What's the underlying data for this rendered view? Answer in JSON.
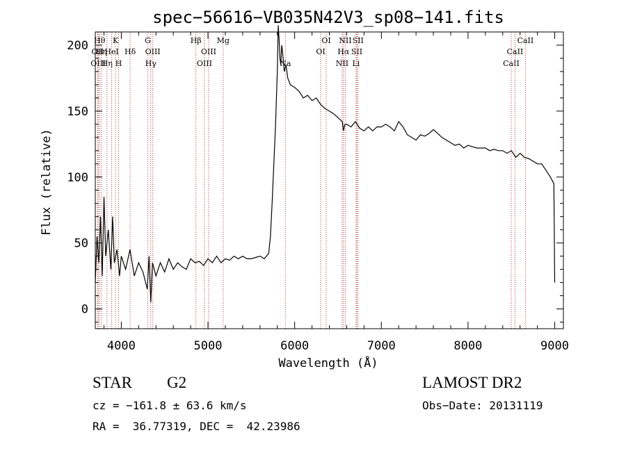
{
  "chart_data": {
    "type": "line",
    "title": "spec−56616−VB035N42V3_sp08−141.fits",
    "xlabel": "Wavelength (Å)",
    "ylabel": "Flux (relative)",
    "xlim": [
      3700,
      9100
    ],
    "ylim": [
      -15,
      210
    ],
    "x_ticks": [
      4000,
      5000,
      6000,
      7000,
      8000,
      9000
    ],
    "y_ticks": [
      0,
      50,
      100,
      150,
      200
    ],
    "grid": false,
    "legend": "none",
    "line_color": "#000000",
    "marker_color": "#b03030",
    "series": [
      {
        "x": [
          3700,
          3720,
          3740,
          3760,
          3780,
          3800,
          3820,
          3850,
          3880,
          3900,
          3920,
          3950,
          3980,
          4000,
          4050,
          4100,
          4150,
          4200,
          4250,
          4300,
          4320,
          4340,
          4360,
          4400,
          4450,
          4500,
          4550,
          4600,
          4650,
          4700,
          4750,
          4800,
          4850,
          4900,
          4950,
          5000,
          5050,
          5100,
          5150,
          5200,
          5250,
          5300,
          5350,
          5400,
          5450,
          5500,
          5550,
          5600,
          5650,
          5700,
          5720,
          5740,
          5760,
          5780,
          5800,
          5810,
          5820,
          5830,
          5840,
          5850,
          5860,
          5880,
          5900,
          5920,
          5950,
          6000,
          6050,
          6100,
          6150,
          6200,
          6250,
          6300,
          6350,
          6400,
          6450,
          6500,
          6550,
          6563,
          6580,
          6600,
          6650,
          6700,
          6750,
          6800,
          6850,
          6900,
          6950,
          7000,
          7050,
          7100,
          7150,
          7200,
          7250,
          7300,
          7350,
          7400,
          7450,
          7500,
          7550,
          7600,
          7650,
          7700,
          7750,
          7800,
          7850,
          7900,
          7950,
          8000,
          8050,
          8100,
          8150,
          8200,
          8250,
          8300,
          8350,
          8400,
          8450,
          8500,
          8550,
          8600,
          8650,
          8700,
          8750,
          8800,
          8850,
          8900,
          8950,
          8990,
          9000
        ],
        "y": [
          20,
          55,
          35,
          70,
          25,
          85,
          40,
          60,
          30,
          70,
          35,
          45,
          25,
          40,
          30,
          45,
          25,
          35,
          28,
          15,
          40,
          5,
          35,
          25,
          35,
          28,
          38,
          30,
          35,
          32,
          30,
          38,
          35,
          36,
          33,
          38,
          35,
          40,
          35,
          38,
          37,
          40,
          38,
          40,
          38,
          38,
          39,
          40,
          38,
          42,
          55,
          80,
          110,
          140,
          180,
          215,
          205,
          190,
          185,
          200,
          195,
          180,
          185,
          175,
          170,
          168,
          165,
          160,
          162,
          158,
          160,
          155,
          152,
          150,
          148,
          145,
          142,
          135,
          140,
          140,
          138,
          142,
          137,
          135,
          138,
          135,
          138,
          138,
          140,
          138,
          135,
          142,
          138,
          132,
          130,
          128,
          132,
          131,
          133,
          136,
          133,
          130,
          128,
          126,
          124,
          125,
          122,
          124,
          123,
          122,
          122,
          122,
          120,
          121,
          120,
          120,
          118,
          120,
          115,
          118,
          115,
          114,
          112,
          110,
          110,
          105,
          100,
          95,
          20
        ]
      }
    ],
    "line_markers": [
      {
        "w": 3727,
        "row": 1,
        "label": "OII"
      },
      {
        "w": 3734,
        "row": 2,
        "label": "OIII"
      },
      {
        "w": 3750,
        "row": 0,
        "label": "Hθ"
      },
      {
        "w": 3771,
        "row": 1,
        "label": "Hη"
      },
      {
        "w": 3835,
        "row": 2,
        "label": "Hη"
      },
      {
        "w": 3889,
        "row": 1,
        "label": "HeI"
      },
      {
        "w": 3934,
        "row": 0,
        "label": "K"
      },
      {
        "w": 3969,
        "row": 2,
        "label": "H"
      },
      {
        "w": 4102,
        "row": 1,
        "label": "Hδ"
      },
      {
        "w": 4305,
        "row": 0,
        "label": "G"
      },
      {
        "w": 4340,
        "row": 2,
        "label": "Hγ"
      },
      {
        "w": 4363,
        "row": 1,
        "label": "OIII"
      },
      {
        "w": 4861,
        "row": 0,
        "label": "Hβ"
      },
      {
        "w": 4959,
        "row": 2,
        "label": "OIII"
      },
      {
        "w": 5007,
        "row": 1,
        "label": "OIII"
      },
      {
        "w": 5175,
        "row": 0,
        "label": "Mg"
      },
      {
        "w": 5893,
        "row": 2,
        "label": "Na"
      },
      {
        "w": 6300,
        "row": 1,
        "label": "OI"
      },
      {
        "w": 6364,
        "row": 0,
        "label": "OI"
      },
      {
        "w": 6548,
        "row": 2,
        "label": "NII"
      },
      {
        "w": 6563,
        "row": 1,
        "label": "Hα"
      },
      {
        "w": 6584,
        "row": 0,
        "label": "NII"
      },
      {
        "w": 6717,
        "row": 1,
        "label": "SII"
      },
      {
        "w": 6731,
        "row": 0,
        "label": "SII"
      },
      {
        "w": 6708,
        "row": 2,
        "label": "Li"
      },
      {
        "w": 8498,
        "row": 2,
        "label": "CaII"
      },
      {
        "w": 8542,
        "row": 1,
        "label": "CaII"
      },
      {
        "w": 8662,
        "row": 0,
        "label": "CaII"
      }
    ]
  },
  "info": {
    "object_class": "STAR",
    "subclass": "G2",
    "survey": "LAMOST DR2",
    "cz": "cz = −161.8 ± 63.6 km/s",
    "obs_date": "Obs−Date: 20131119",
    "coords": "RA =  36.77319, DEC =  42.23986"
  }
}
